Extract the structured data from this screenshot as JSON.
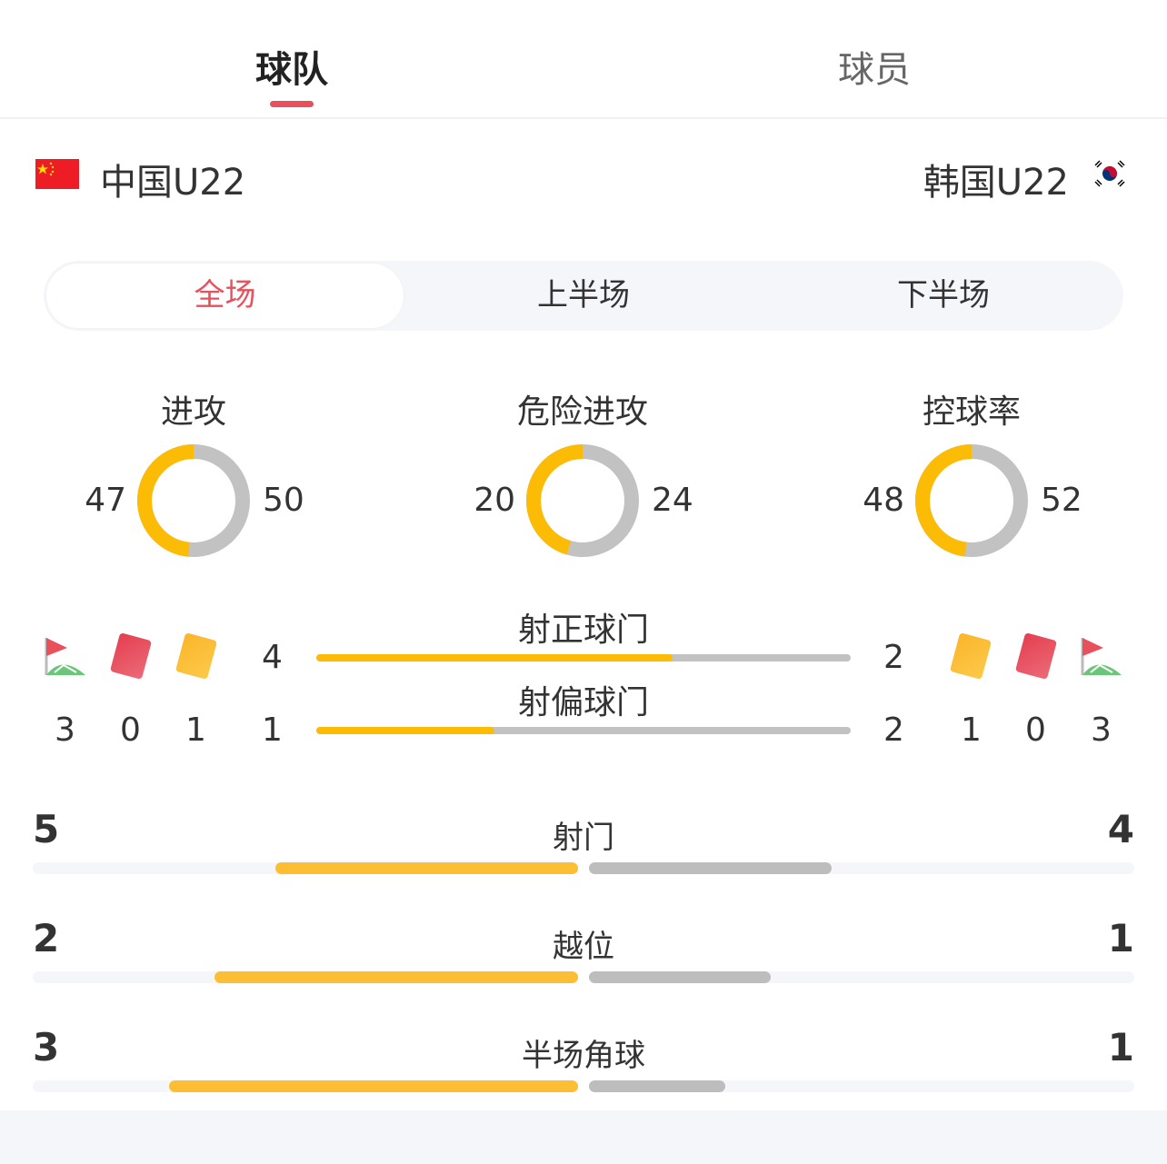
{
  "tabs": [
    {
      "label": "球队",
      "active": true
    },
    {
      "label": "球员",
      "active": false
    }
  ],
  "teams": {
    "home": {
      "name": "中国U22",
      "flag": "china-flag"
    },
    "away": {
      "name": "韩国U22",
      "flag": "korea-flag"
    }
  },
  "periods": [
    {
      "label": "全场",
      "active": true
    },
    {
      "label": "上半场"
    },
    {
      "label": "下半场"
    }
  ],
  "colors": {
    "home": "#fcbc05",
    "away": "#c2c2c2",
    "accent": "#e8505b"
  },
  "donuts": [
    {
      "title": "进攻",
      "home": 47,
      "away": 50
    },
    {
      "title": "危险进攻",
      "home": 20,
      "away": 24
    },
    {
      "title": "控球率",
      "home": 48,
      "away": 52
    }
  ],
  "events": {
    "home": {
      "corners": "3",
      "red_cards": "0",
      "yellow_cards": "1"
    },
    "away": {
      "yellow_cards": "1",
      "red_cards": "0",
      "corners": "3"
    }
  },
  "shot_bars": [
    {
      "title": "射正球门",
      "home": 4,
      "away": 2
    },
    {
      "title": "射偏球门",
      "home": 1,
      "away": 2
    }
  ],
  "stats": [
    {
      "title": "射门",
      "home": 5,
      "away": 4
    },
    {
      "title": "越位",
      "home": 2,
      "away": 1
    },
    {
      "title": "半场角球",
      "home": 3,
      "away": 1
    }
  ]
}
